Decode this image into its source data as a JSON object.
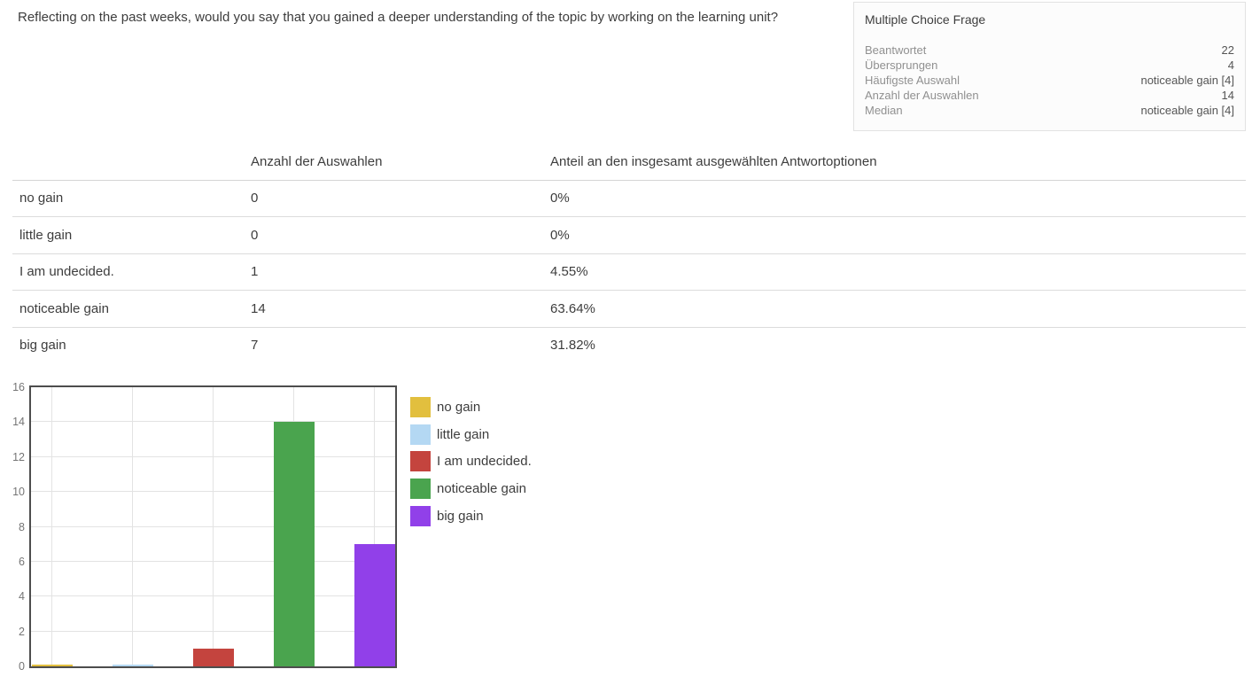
{
  "question": {
    "text": "Reflecting on the past weeks, would you say that you gained a deeper understanding of the topic by working on the learning unit?"
  },
  "stats_panel": {
    "title": "Multiple Choice Frage",
    "rows": [
      {
        "label": "Beantwortet",
        "value": "22"
      },
      {
        "label": "Übersprungen",
        "value": "4"
      },
      {
        "label": "Häufigste Auswahl",
        "value": "noticeable gain [4]"
      },
      {
        "label": "Anzahl der Auswahlen",
        "value": "14"
      },
      {
        "label": "Median",
        "value": "noticeable gain [4]"
      }
    ]
  },
  "table": {
    "columns": [
      "",
      "Anzahl der Auswahlen",
      "Anteil an den insgesamt ausgewählten Antwortoptionen"
    ],
    "rows": [
      {
        "option": "no gain",
        "count": "0",
        "share": "0%"
      },
      {
        "option": "little gain",
        "count": "0",
        "share": "0%"
      },
      {
        "option": "I am undecided.",
        "count": "1",
        "share": "4.55%"
      },
      {
        "option": "noticeable gain",
        "count": "14",
        "share": "63.64%"
      },
      {
        "option": "big gain",
        "count": "7",
        "share": "31.82%"
      }
    ]
  },
  "chart_data": {
    "type": "bar",
    "title": "",
    "xlabel": "",
    "ylabel": "",
    "categories": [
      "no gain",
      "little gain",
      "I am undecided.",
      "noticeable gain",
      "big gain"
    ],
    "values": [
      0,
      0,
      1,
      14,
      7
    ],
    "colors": [
      "#e2bf3e",
      "#b4d8f3",
      "#c4443e",
      "#4aa44e",
      "#9140e9"
    ],
    "ylim": [
      0,
      16
    ],
    "ytick_step": 2,
    "yticks": [
      0,
      2,
      4,
      6,
      8,
      10,
      12,
      14,
      16
    ],
    "grid": true,
    "legend_position": "right",
    "plot_border_color": "#4d4d4d",
    "gridline_color": "#e3e3e3",
    "axis_label_color": "#757575"
  }
}
